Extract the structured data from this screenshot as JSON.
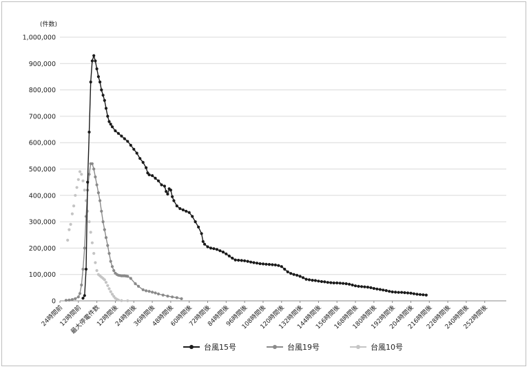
{
  "chart_data": {
    "type": "line",
    "ylabel": "(件数)",
    "ylim": [
      0,
      1000000
    ],
    "yticks": [
      "0",
      "100,000",
      "200,000",
      "300,000",
      "400,000",
      "500,000",
      "600,000",
      "700,000",
      "800,000",
      "900,000",
      "1,000,000"
    ],
    "xlim": [
      -24,
      266
    ],
    "xticks": [
      {
        "x": -24,
        "label": "24時間前"
      },
      {
        "x": -12,
        "label": "12時間前"
      },
      {
        "x": 0,
        "label": "最大停電件数"
      },
      {
        "x": 12,
        "label": "12時間後"
      },
      {
        "x": 24,
        "label": "24時間後"
      },
      {
        "x": 36,
        "label": "36時間後"
      },
      {
        "x": 48,
        "label": "48時間後"
      },
      {
        "x": 60,
        "label": "60時間後"
      },
      {
        "x": 72,
        "label": "72時間後"
      },
      {
        "x": 84,
        "label": "84時間後"
      },
      {
        "x": 96,
        "label": "96時間後"
      },
      {
        "x": 108,
        "label": "108時間後"
      },
      {
        "x": 120,
        "label": "120時間後"
      },
      {
        "x": 132,
        "label": "132時間後"
      },
      {
        "x": 144,
        "label": "144時間後"
      },
      {
        "x": 156,
        "label": "156時間後"
      },
      {
        "x": 168,
        "label": "168時間後"
      },
      {
        "x": 180,
        "label": "180時間後"
      },
      {
        "x": 192,
        "label": "192時間後"
      },
      {
        "x": 204,
        "label": "204時間後"
      },
      {
        "x": 216,
        "label": "216時間後"
      },
      {
        "x": 228,
        "label": "228時間後"
      },
      {
        "x": 240,
        "label": "240時間後"
      },
      {
        "x": 252,
        "label": "252時間後"
      }
    ],
    "grid": true,
    "legend_position": "bottom",
    "series": [
      {
        "name": "台風15号",
        "color": "#1a1a1a",
        "line": true,
        "points": [
          [
            -9,
            10000
          ],
          [
            -8,
            20000
          ],
          [
            -7,
            120000
          ],
          [
            -6,
            450000
          ],
          [
            -5,
            640000
          ],
          [
            -4,
            830000
          ],
          [
            -3,
            910000
          ],
          [
            -2,
            930000
          ],
          [
            -1,
            910000
          ],
          [
            0,
            880000
          ],
          [
            1,
            850000
          ],
          [
            2,
            830000
          ],
          [
            3,
            800000
          ],
          [
            4,
            780000
          ],
          [
            5,
            760000
          ],
          [
            6,
            730000
          ],
          [
            7,
            700000
          ],
          [
            8,
            680000
          ],
          [
            9,
            670000
          ],
          [
            10,
            660000
          ],
          [
            12,
            645000
          ],
          [
            14,
            635000
          ],
          [
            16,
            625000
          ],
          [
            18,
            615000
          ],
          [
            20,
            605000
          ],
          [
            22,
            590000
          ],
          [
            24,
            575000
          ],
          [
            26,
            560000
          ],
          [
            28,
            540000
          ],
          [
            30,
            525000
          ],
          [
            32,
            505000
          ],
          [
            33,
            485000
          ],
          [
            34,
            478000
          ],
          [
            36,
            475000
          ],
          [
            38,
            465000
          ],
          [
            40,
            455000
          ],
          [
            42,
            440000
          ],
          [
            44,
            435000
          ],
          [
            45,
            415000
          ],
          [
            46,
            405000
          ],
          [
            47,
            425000
          ],
          [
            48,
            420000
          ],
          [
            49,
            395000
          ],
          [
            50,
            380000
          ],
          [
            52,
            360000
          ],
          [
            54,
            350000
          ],
          [
            56,
            345000
          ],
          [
            58,
            340000
          ],
          [
            60,
            335000
          ],
          [
            62,
            320000
          ],
          [
            64,
            300000
          ],
          [
            66,
            280000
          ],
          [
            68,
            255000
          ],
          [
            69,
            225000
          ],
          [
            70,
            215000
          ],
          [
            72,
            205000
          ],
          [
            74,
            200000
          ],
          [
            76,
            198000
          ],
          [
            78,
            195000
          ],
          [
            80,
            190000
          ],
          [
            82,
            185000
          ],
          [
            84,
            178000
          ],
          [
            86,
            170000
          ],
          [
            88,
            162000
          ],
          [
            90,
            155000
          ],
          [
            92,
            154000
          ],
          [
            94,
            153000
          ],
          [
            96,
            152000
          ],
          [
            98,
            150000
          ],
          [
            100,
            147000
          ],
          [
            102,
            145000
          ],
          [
            104,
            143000
          ],
          [
            106,
            141000
          ],
          [
            108,
            140000
          ],
          [
            110,
            139000
          ],
          [
            112,
            138000
          ],
          [
            114,
            137000
          ],
          [
            116,
            136000
          ],
          [
            118,
            134000
          ],
          [
            120,
            130000
          ],
          [
            122,
            120000
          ],
          [
            124,
            110000
          ],
          [
            126,
            104000
          ],
          [
            128,
            100000
          ],
          [
            130,
            97000
          ],
          [
            132,
            93000
          ],
          [
            134,
            88000
          ],
          [
            136,
            82000
          ],
          [
            138,
            80000
          ],
          [
            140,
            78000
          ],
          [
            142,
            77000
          ],
          [
            144,
            75000
          ],
          [
            146,
            73000
          ],
          [
            148,
            72000
          ],
          [
            150,
            70000
          ],
          [
            152,
            69000
          ],
          [
            154,
            68000
          ],
          [
            156,
            68000
          ],
          [
            158,
            67000
          ],
          [
            160,
            66000
          ],
          [
            162,
            65000
          ],
          [
            164,
            63000
          ],
          [
            166,
            60000
          ],
          [
            168,
            57000
          ],
          [
            170,
            55000
          ],
          [
            172,
            54000
          ],
          [
            174,
            53000
          ],
          [
            176,
            52000
          ],
          [
            178,
            50000
          ],
          [
            180,
            47000
          ],
          [
            182,
            45000
          ],
          [
            184,
            43000
          ],
          [
            186,
            41000
          ],
          [
            188,
            39000
          ],
          [
            190,
            36000
          ],
          [
            192,
            34000
          ],
          [
            194,
            33000
          ],
          [
            196,
            32000
          ],
          [
            198,
            32000
          ],
          [
            200,
            31000
          ],
          [
            202,
            30000
          ],
          [
            204,
            29000
          ],
          [
            206,
            27000
          ],
          [
            208,
            25000
          ],
          [
            210,
            24000
          ],
          [
            212,
            23000
          ],
          [
            214,
            22000
          ]
        ]
      },
      {
        "name": "台風19号",
        "color": "#8a8a8a",
        "line": true,
        "points": [
          [
            -20,
            2000
          ],
          [
            -18,
            3000
          ],
          [
            -16,
            5000
          ],
          [
            -14,
            8000
          ],
          [
            -12,
            15000
          ],
          [
            -11,
            28000
          ],
          [
            -10,
            60000
          ],
          [
            -9,
            120000
          ],
          [
            -8,
            200000
          ],
          [
            -7,
            320000
          ],
          [
            -6,
            420000
          ],
          [
            -5,
            480000
          ],
          [
            -4,
            520000
          ],
          [
            -3,
            520000
          ],
          [
            -2,
            500000
          ],
          [
            -1,
            470000
          ],
          [
            0,
            440000
          ],
          [
            1,
            410000
          ],
          [
            2,
            380000
          ],
          [
            3,
            340000
          ],
          [
            4,
            300000
          ],
          [
            5,
            270000
          ],
          [
            6,
            240000
          ],
          [
            7,
            210000
          ],
          [
            8,
            180000
          ],
          [
            9,
            150000
          ],
          [
            10,
            130000
          ],
          [
            11,
            115000
          ],
          [
            12,
            105000
          ],
          [
            13,
            100000
          ],
          [
            14,
            97000
          ],
          [
            15,
            96000
          ],
          [
            16,
            95000
          ],
          [
            17,
            95000
          ],
          [
            18,
            95000
          ],
          [
            19,
            94000
          ],
          [
            20,
            93000
          ],
          [
            22,
            85000
          ],
          [
            25,
            65000
          ],
          [
            27,
            55000
          ],
          [
            30,
            42000
          ],
          [
            32,
            38000
          ],
          [
            34,
            36000
          ],
          [
            36,
            33000
          ],
          [
            38,
            30000
          ],
          [
            40,
            26000
          ],
          [
            43,
            22000
          ],
          [
            46,
            18000
          ],
          [
            49,
            15000
          ],
          [
            52,
            12000
          ],
          [
            55,
            8000
          ]
        ]
      },
      {
        "name": "台風10号",
        "color": "#c4c4c4",
        "line": false,
        "points": [
          [
            -19,
            230000
          ],
          [
            -18,
            270000
          ],
          [
            -17,
            290000
          ],
          [
            -16,
            330000
          ],
          [
            -15,
            360000
          ],
          [
            -14,
            400000
          ],
          [
            -13,
            430000
          ],
          [
            -12,
            460000
          ],
          [
            -11,
            490000
          ],
          [
            -10,
            480000
          ],
          [
            -9,
            455000
          ],
          [
            -8,
            420000
          ],
          [
            -7,
            380000
          ],
          [
            -6,
            340000
          ],
          [
            -5,
            300000
          ],
          [
            -4,
            260000
          ],
          [
            -3,
            220000
          ],
          [
            -2,
            180000
          ],
          [
            -1,
            145000
          ],
          [
            0,
            115000
          ],
          [
            1,
            100000
          ],
          [
            2,
            95000
          ],
          [
            3,
            90000
          ],
          [
            4,
            85000
          ],
          [
            5,
            80000
          ],
          [
            6,
            70000
          ],
          [
            7,
            58000
          ],
          [
            8,
            46000
          ],
          [
            9,
            35000
          ],
          [
            10,
            25000
          ],
          [
            11,
            17000
          ],
          [
            12,
            10000
          ],
          [
            13,
            6000
          ],
          [
            14,
            3000
          ],
          [
            16,
            1000
          ],
          [
            20,
            500
          ]
        ]
      }
    ]
  }
}
